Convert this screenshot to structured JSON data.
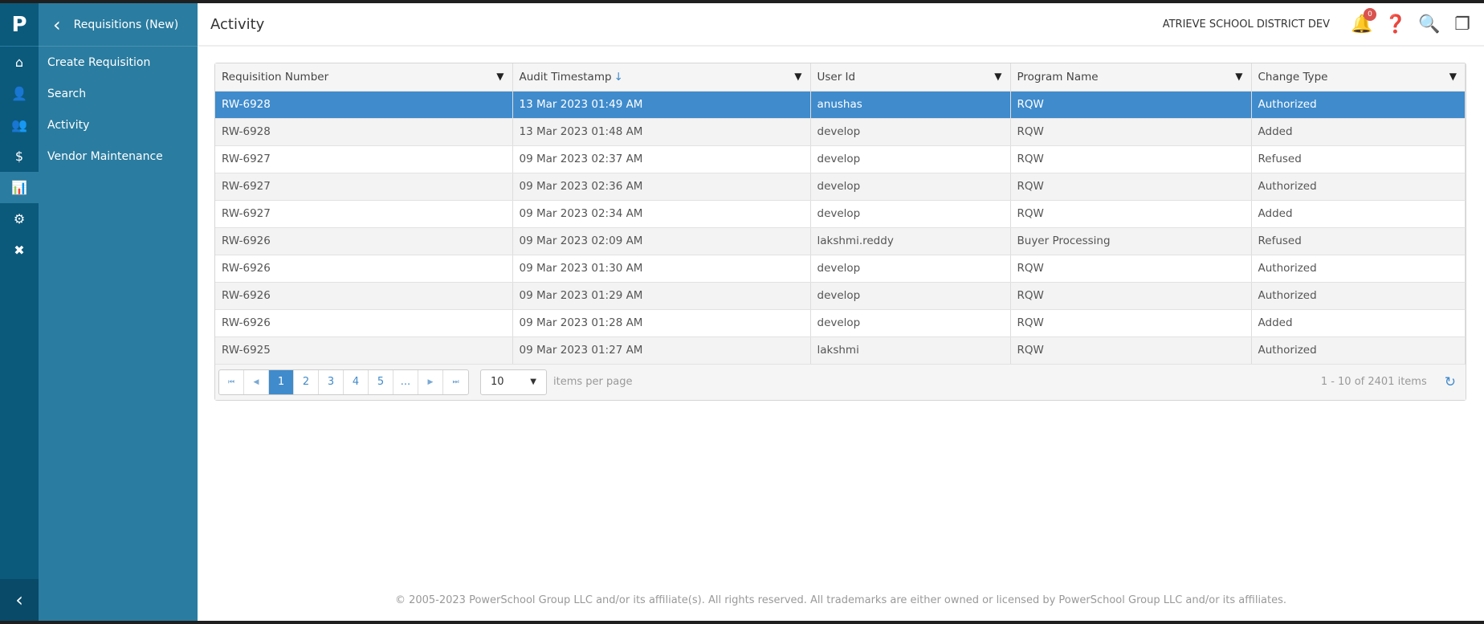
{
  "rail": {
    "logo": "P",
    "items": [
      {
        "icon": "home-icon",
        "glyph": "⌂"
      },
      {
        "icon": "user-icon",
        "glyph": "👤"
      },
      {
        "icon": "users-icon",
        "glyph": "👥"
      },
      {
        "icon": "dollar-icon",
        "glyph": "$"
      },
      {
        "icon": "chart-icon",
        "glyph": "📊"
      },
      {
        "icon": "gear-icon",
        "glyph": "⚙"
      },
      {
        "icon": "tools-icon",
        "glyph": "✖"
      }
    ],
    "back_glyph": "‹"
  },
  "panel": {
    "title": "Requisitions (New)",
    "items": [
      {
        "label": "Create Requisition"
      },
      {
        "label": "Search"
      },
      {
        "label": "Activity"
      },
      {
        "label": "Vendor Maintenance"
      }
    ]
  },
  "header": {
    "title": "Activity",
    "district": "ATRIEVE SCHOOL DISTRICT DEV",
    "notification_count": "0"
  },
  "grid": {
    "columns": [
      "Requisition Number",
      "Audit Timestamp",
      "User Id",
      "Program Name",
      "Change Type"
    ],
    "sort_indicator": "↓",
    "rows": [
      [
        "RW-6928",
        "13 Mar 2023 01:49 AM",
        "anushas",
        "RQW",
        "Authorized"
      ],
      [
        "RW-6928",
        "13 Mar 2023 01:48 AM",
        "develop",
        "RQW",
        "Added"
      ],
      [
        "RW-6927",
        "09 Mar 2023 02:37 AM",
        "develop",
        "RQW",
        "Refused"
      ],
      [
        "RW-6927",
        "09 Mar 2023 02:36 AM",
        "develop",
        "RQW",
        "Authorized"
      ],
      [
        "RW-6927",
        "09 Mar 2023 02:34 AM",
        "develop",
        "RQW",
        "Added"
      ],
      [
        "RW-6926",
        "09 Mar 2023 02:09 AM",
        "lakshmi.reddy",
        "Buyer Processing",
        "Refused"
      ],
      [
        "RW-6926",
        "09 Mar 2023 01:30 AM",
        "develop",
        "RQW",
        "Authorized"
      ],
      [
        "RW-6926",
        "09 Mar 2023 01:29 AM",
        "develop",
        "RQW",
        "Authorized"
      ],
      [
        "RW-6926",
        "09 Mar 2023 01:28 AM",
        "develop",
        "RQW",
        "Added"
      ],
      [
        "RW-6925",
        "09 Mar 2023 01:27 AM",
        "lakshmi",
        "RQW",
        "Authorized"
      ]
    ],
    "selected_row": 0
  },
  "pager": {
    "pages": [
      "1",
      "2",
      "3",
      "4",
      "5",
      "..."
    ],
    "current": "1",
    "page_size": "10",
    "items_per_page": "items per page",
    "info": "1 - 10 of 2401 items"
  },
  "footer": "© 2005-2023 PowerSchool Group LLC and/or its affiliate(s). All rights reserved. All trademarks are either owned or licensed by PowerSchool Group LLC and/or its affiliates.",
  "colors": {
    "rail": "#0b5a7c",
    "panel": "#2a7ca0",
    "selected": "#3f8bcc"
  }
}
